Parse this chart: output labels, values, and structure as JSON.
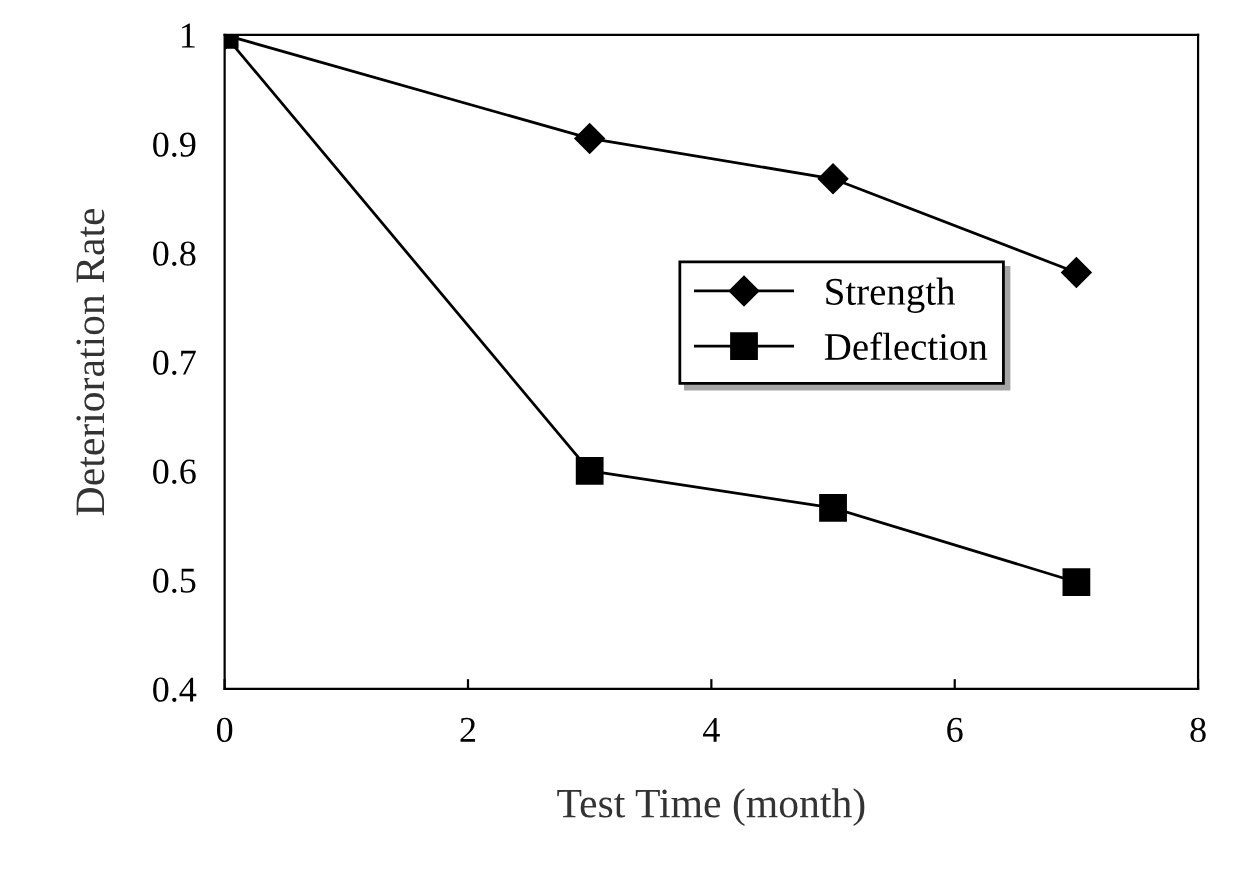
{
  "chart_data": {
    "type": "line",
    "xlabel": "Test Time (month)",
    "ylabel": "Deterioration Rate",
    "x": [
      0,
      3,
      5,
      7
    ],
    "series": [
      {
        "name": "Strength",
        "color": "#000000",
        "values": [
          1,
          0.905,
          0.868,
          0.782
        ],
        "marker": "diamond"
      },
      {
        "name": "Deflection",
        "color": "#000000",
        "values": [
          1,
          0.6,
          0.566,
          0.498
        ],
        "marker": "square"
      }
    ],
    "xlim": [
      0,
      8
    ],
    "xticks": [
      0,
      2,
      4,
      6,
      8
    ],
    "ylim": [
      0.4,
      1
    ],
    "yticks": [
      0.4,
      0.5,
      0.6,
      0.7,
      0.8,
      0.9,
      1
    ],
    "grid": false,
    "legend": "center right",
    "line_style": "solid"
  }
}
